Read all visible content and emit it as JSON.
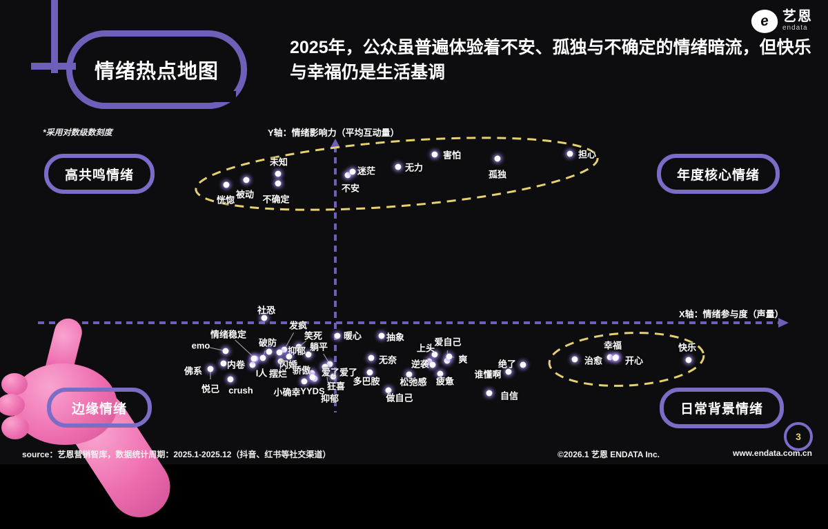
{
  "theme": {
    "background": "#0d0d0f",
    "accent_purple": "#7b6cc8",
    "axis_purple": "#6e5fb8",
    "highlight_yellow": "#e5d26e",
    "text_white": "#ffffff",
    "hand_pink": "#ee6fb0",
    "dot_glow": "#a78cf6"
  },
  "header": {
    "title": "情绪热点地图",
    "headline": "2025年，公众虽普遍体验着不安、孤独与不确定的情绪暗流，但快乐与幸福仍是生活基调",
    "logo_glyph": "e",
    "logo_name": "艺恩",
    "logo_sub": "endata"
  },
  "chart": {
    "scale_note": "*采用对数级数刻度",
    "y_axis_label": "Y轴：情绪影响力（平均互动量）",
    "x_axis_label": "X轴：情绪参与度（声量）",
    "quadrants": [
      {
        "id": "top-left",
        "text": "高共鸣情绪"
      },
      {
        "id": "top-right",
        "text": "年度核心情绪"
      },
      {
        "id": "bottom-left",
        "text": "边缘情绪"
      },
      {
        "id": "bottom-right",
        "text": "日常背景情绪"
      }
    ]
  },
  "chart_data": {
    "type": "scatter",
    "title": "情绪热点地图",
    "xlabel": "X轴：情绪参与度（声量）",
    "ylabel": "Y轴：情绪影响力（平均互动量）",
    "scale_note": "*采用对数级数刻度",
    "axes_numeric": false,
    "units": "canvas-px (1200x673), y up = higher 情绪影响力, x right = higher 参与度",
    "highlight_groups": [
      {
        "style": "yellow-dashed-ellipse",
        "region": "top",
        "members": [
          "恍惚",
          "被动",
          "未知",
          "不确定",
          "不安",
          "迷茫",
          "无力",
          "害怕",
          "孤独",
          "担心"
        ]
      },
      {
        "style": "yellow-dashed-ellipse",
        "region": "bottom-right",
        "members": [
          "治愈",
          "幸福",
          "开心",
          "快乐"
        ]
      }
    ],
    "points": [
      {
        "n": "恍惚",
        "p": [
          328,
          268
        ],
        "l": [
          327,
          289
        ]
      },
      {
        "n": "被动",
        "p": [
          357,
          261
        ],
        "l": [
          355,
          281
        ]
      },
      {
        "n": "未知",
        "p": [
          403,
          252
        ],
        "l": [
          404,
          234
        ]
      },
      {
        "n": "不确定",
        "p": [
          403,
          266
        ],
        "l": [
          400,
          288
        ]
      },
      {
        "n": "不安",
        "p": [
          504,
          254
        ],
        "l": [
          508,
          272
        ]
      },
      {
        "n": "迷茫",
        "p": [
          511,
          249
        ],
        "l": [
          531,
          247
        ]
      },
      {
        "n": "无力",
        "p": [
          577,
          242
        ],
        "l": [
          600,
          242
        ]
      },
      {
        "n": "害怕",
        "p": [
          630,
          224
        ],
        "l": [
          655,
          224
        ]
      },
      {
        "n": "孤独",
        "p": [
          721,
          230
        ],
        "l": [
          721,
          252
        ]
      },
      {
        "n": "担心",
        "p": [
          826,
          223
        ],
        "l": [
          851,
          223
        ]
      },
      {
        "n": "社恐",
        "p": [
          383,
          461
        ],
        "l": [
          386,
          449
        ]
      },
      {
        "n": "情绪稳定",
        "p": [
          370,
          520
        ],
        "l": [
          331,
          484
        ],
        "leader": 1
      },
      {
        "n": "emo",
        "p": [
          327,
          509
        ],
        "l": [
          291,
          501
        ],
        "leader": 1
      },
      {
        "n": "破防",
        "p": [
          381,
          519
        ],
        "l": [
          388,
          496
        ],
        "leader": 1
      },
      {
        "n": "发疯",
        "p": [
          412,
          507
        ],
        "l": [
          432,
          471
        ],
        "leader": 1
      },
      {
        "n": "笑死",
        "p": [
          433,
          503
        ],
        "l": [
          454,
          486
        ],
        "leader": 1
      },
      {
        "n": "抑郁",
        "p": [
          447,
          514
        ],
        "l": [
          430,
          508
        ]
      },
      {
        "n": "躺平",
        "p": [
          478,
          528
        ],
        "l": [
          462,
          502
        ],
        "leader": 1
      },
      {
        "n": "暖心",
        "p": [
          489,
          487
        ],
        "l": [
          511,
          486
        ]
      },
      {
        "n": "抽象",
        "p": [
          553,
          487
        ],
        "l": [
          573,
          488
        ]
      },
      {
        "n": "内卷",
        "p": [
          324,
          527
        ],
        "l": [
          342,
          528
        ]
      },
      {
        "n": "佛系",
        "p": [
          305,
          535
        ],
        "l": [
          280,
          537
        ]
      },
      {
        "n": "悦己",
        "p": [
          305,
          537
        ],
        "l": [
          305,
          563
        ],
        "leader": 1,
        "nodot": 1
      },
      {
        "n": "crush",
        "p": [
          334,
          550
        ],
        "l": [
          349,
          566
        ]
      },
      {
        "n": "I人",
        "p": [
          366,
          529
        ],
        "l": [
          379,
          540
        ]
      },
      {
        "n": "摆烂",
        "p": [
          407,
          524
        ],
        "l": [
          403,
          541
        ]
      },
      {
        "n": "闪婚",
        "p": [
          419,
          517
        ],
        "l": [
          418,
          528
        ]
      },
      {
        "n": "骄傲",
        "p": [
          452,
          541
        ],
        "l": [
          437,
          536
        ]
      },
      {
        "n": "小确幸",
        "p": [
          441,
          553
        ],
        "l": [
          416,
          568
        ]
      },
      {
        "n": "YYDS",
        "p": [
          456,
          549
        ],
        "l": [
          453,
          567
        ]
      },
      {
        "n": "狂喜",
        "p": [
          483,
          546
        ],
        "l": [
          487,
          559
        ]
      },
      {
        "n": "抑郁",
        "p": [
          472,
          531
        ],
        "l": [
          478,
          577
        ],
        "leader": 1,
        "nodot": 1
      },
      {
        "n": "爱了爱了",
        "p": [
          471,
          532
        ],
        "l": [
          492,
          539
        ]
      },
      {
        "n": "多巴胺",
        "p": [
          536,
          540
        ],
        "l": [
          531,
          552
        ]
      },
      {
        "n": "无奈",
        "p": [
          538,
          519
        ],
        "l": [
          562,
          521
        ]
      },
      {
        "n": "逆袭",
        "p": [
          622,
          524
        ],
        "l": [
          609,
          527
        ]
      },
      {
        "n": "上头",
        "p": [
          630,
          514
        ],
        "l": [
          617,
          504
        ]
      },
      {
        "n": "爱自己",
        "p": [
          648,
          523
        ],
        "l": [
          649,
          495
        ],
        "leader": 1
      },
      {
        "n": "爽",
        "p": [
          651,
          517
        ],
        "l": [
          671,
          520
        ],
        "leader": 1
      },
      {
        "n": "松弛感",
        "p": [
          593,
          543
        ],
        "l": [
          599,
          553
        ]
      },
      {
        "n": "疲惫",
        "p": [
          638,
          542
        ],
        "l": [
          645,
          552
        ]
      },
      {
        "n": "做自己",
        "p": [
          563,
          566
        ],
        "l": [
          579,
          576
        ]
      },
      {
        "n": "谁懂啊",
        "p": [
          737,
          539
        ],
        "l": [
          707,
          542
        ]
      },
      {
        "n": "绝了",
        "p": [
          758,
          529
        ],
        "l": [
          735,
          527
        ]
      },
      {
        "n": "自信",
        "p": [
          709,
          570
        ],
        "l": [
          738,
          573
        ]
      },
      {
        "n": "治愈",
        "p": [
          833,
          521
        ],
        "l": [
          860,
          522
        ]
      },
      {
        "n": "幸福",
        "p": [
          884,
          518
        ],
        "l": [
          888,
          500
        ]
      },
      {
        "n": "开心",
        "p": [
          893,
          518
        ],
        "l": [
          919,
          522
        ]
      },
      {
        "n": "快乐",
        "p": [
          998,
          522
        ],
        "l": [
          996,
          503
        ]
      }
    ],
    "extra_dots": [
      [
        368,
        520
      ],
      [
        390,
        510
      ],
      [
        405,
        511
      ],
      [
        453,
        547
      ],
      [
        892,
        519
      ],
      [
        627,
        529
      ]
    ]
  },
  "footer": {
    "source": "source：艺恩营销智库，数据统计周期：2025.1-2025.12（抖音、红书等社交渠道）",
    "copyright": "©2026.1 艺恩 ENDATA Inc.",
    "website": "www.endata.com.cn",
    "page": "3"
  }
}
